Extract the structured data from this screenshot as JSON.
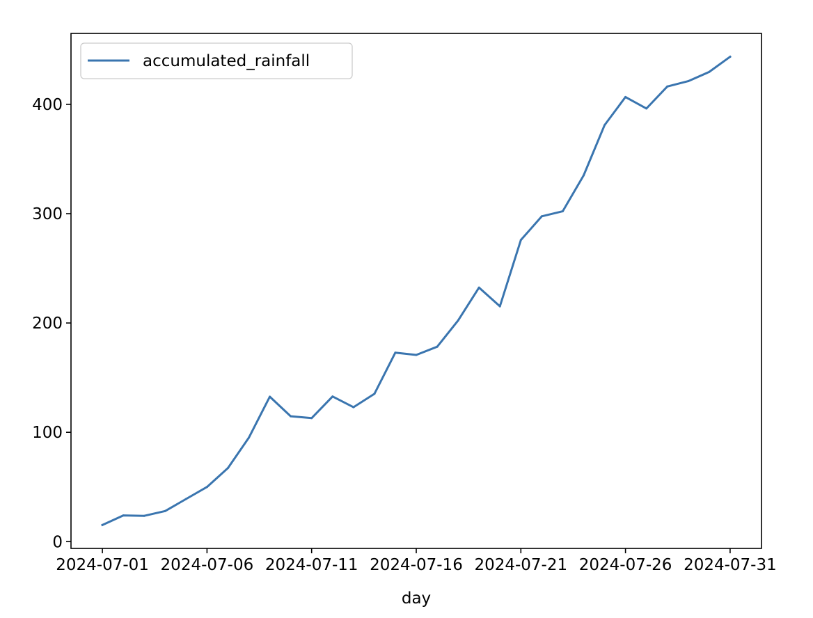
{
  "chart_data": {
    "type": "line",
    "title": "",
    "xlabel": "day",
    "ylabel": "",
    "x": [
      "2024-07-01",
      "2024-07-02",
      "2024-07-03",
      "2024-07-04",
      "2024-07-05",
      "2024-07-06",
      "2024-07-07",
      "2024-07-08",
      "2024-07-09",
      "2024-07-10",
      "2024-07-11",
      "2024-07-12",
      "2024-07-13",
      "2024-07-14",
      "2024-07-15",
      "2024-07-16",
      "2024-07-17",
      "2024-07-18",
      "2024-07-19",
      "2024-07-20",
      "2024-07-21",
      "2024-07-22",
      "2024-07-23",
      "2024-07-24",
      "2024-07-25",
      "2024-07-26",
      "2024-07-27",
      "2024-07-28",
      "2024-07-29",
      "2024-07-30",
      "2024-07-31"
    ],
    "series": [
      {
        "name": "accumulated_rainfall",
        "color": "#3a75af",
        "values": [
          15.2,
          24.0,
          23.6,
          28.0,
          39.0,
          50.0,
          67.3,
          95.1,
          132.6,
          114.7,
          113.0,
          132.8,
          123.0,
          135.2,
          172.8,
          170.8,
          178.3,
          202.2,
          232.4,
          215.3,
          275.9,
          297.6,
          302.2,
          335.0,
          380.9,
          406.7,
          396.2,
          416.3,
          421.2,
          429.6,
          443.5
        ]
      }
    ],
    "xticks": [
      "2024-07-01",
      "2024-07-06",
      "2024-07-11",
      "2024-07-16",
      "2024-07-21",
      "2024-07-26",
      "2024-07-31"
    ],
    "yticks": [
      0,
      100,
      200,
      300,
      400
    ],
    "xlim": [
      "2024-06-29.5",
      "2024-08-01.5"
    ],
    "ylim": [
      -6.2,
      464.9
    ],
    "grid": false,
    "legend": "upper left"
  }
}
